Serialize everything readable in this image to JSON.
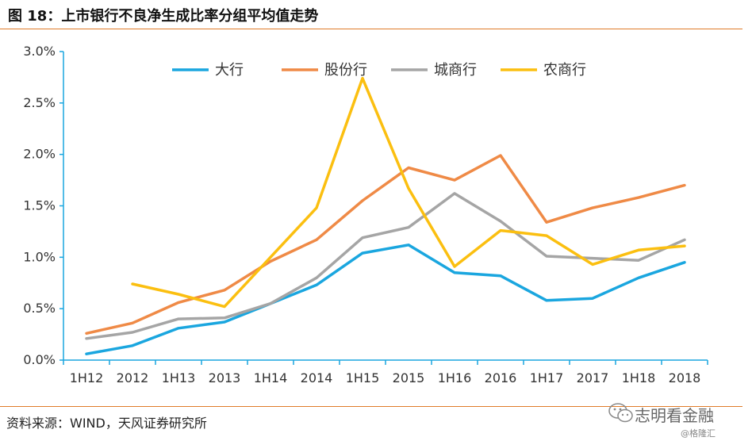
{
  "header": {
    "title": "图 18：上市银行不良净生成比率分组平均值走势"
  },
  "footer": {
    "source": "资料来源：WIND，天风证券研究所"
  },
  "watermark": {
    "text": "志明看金融",
    "sub": "@格隆汇",
    "icon": "wechat-icon"
  },
  "colors": {
    "accent_rule": "#e07b2a"
  },
  "chart_data": {
    "type": "line",
    "title": "",
    "xlabel": "",
    "ylabel": "",
    "categories": [
      "1H12",
      "2012",
      "1H13",
      "2013",
      "1H14",
      "2014",
      "1H15",
      "2015",
      "1H16",
      "2016",
      "1H17",
      "2017",
      "1H18",
      "2018"
    ],
    "ylim": [
      0,
      3.0
    ],
    "yticks": [
      "0.0%",
      "0.5%",
      "1.0%",
      "1.5%",
      "2.0%",
      "2.5%",
      "3.0%"
    ],
    "ytick_values": [
      0,
      0.5,
      1.0,
      1.5,
      2.0,
      2.5,
      3.0
    ],
    "grid": false,
    "legend_position": "top",
    "series": [
      {
        "name": "大行",
        "color": "#1aa6df",
        "values": [
          0.06,
          0.14,
          0.31,
          0.37,
          0.55,
          0.73,
          1.04,
          1.12,
          0.85,
          0.82,
          0.58,
          0.6,
          0.8,
          0.95
        ]
      },
      {
        "name": "股份行",
        "color": "#ef8a46",
        "values": [
          0.26,
          0.36,
          0.56,
          0.68,
          0.96,
          1.17,
          1.55,
          1.87,
          1.75,
          1.99,
          1.34,
          1.48,
          1.58,
          1.7
        ]
      },
      {
        "name": "城商行",
        "color": "#a5a5a5",
        "values": [
          0.21,
          0.27,
          0.4,
          0.41,
          0.55,
          0.8,
          1.19,
          1.29,
          1.62,
          1.35,
          1.01,
          0.99,
          0.97,
          1.17
        ]
      },
      {
        "name": "农商行",
        "color": "#fbbf10",
        "values": [
          null,
          0.74,
          0.64,
          0.52,
          1.0,
          1.48,
          2.74,
          1.67,
          0.91,
          1.26,
          1.21,
          0.93,
          1.07,
          1.11
        ]
      }
    ]
  }
}
